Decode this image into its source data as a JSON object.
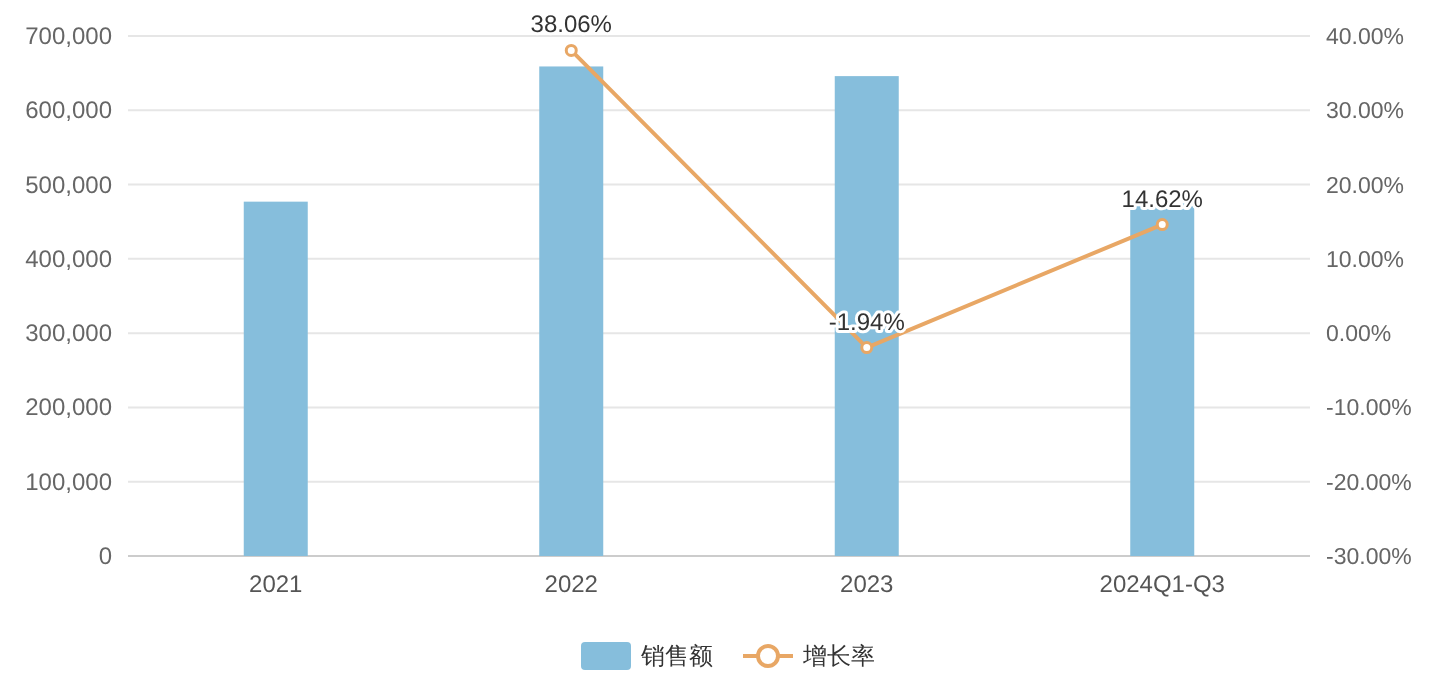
{
  "chart_data": {
    "type": "bar",
    "categories": [
      "2021",
      "2022",
      "2023",
      "2024Q1-Q3"
    ],
    "series": [
      {
        "name": "销售额",
        "color": "#86bedc",
        "values": [
          477000,
          659000,
          646000,
          475000
        ]
      },
      {
        "name": "增长率",
        "type": "line",
        "axis": "y2",
        "color": "#e8a765",
        "marker": "circle",
        "values": [
          null,
          38.06,
          -1.94,
          14.62
        ],
        "value_labels": [
          null,
          "38.06%",
          "-1.94%",
          "14.62%"
        ]
      }
    ],
    "ylim": [
      0,
      700000
    ],
    "yticks": [
      {
        "value": 0,
        "label": "0"
      },
      {
        "value": 100000,
        "label": "100,000"
      },
      {
        "value": 200000,
        "label": "200,000"
      },
      {
        "value": 300000,
        "label": "300,000"
      },
      {
        "value": 400000,
        "label": "400,000"
      },
      {
        "value": 500000,
        "label": "500,000"
      },
      {
        "value": 600000,
        "label": "600,000"
      },
      {
        "value": 700000,
        "label": "700,000"
      }
    ],
    "y2lim": [
      -30,
      40
    ],
    "y2ticks": [
      {
        "value": -30,
        "label": "-30.00%"
      },
      {
        "value": -20,
        "label": "-20.00%"
      },
      {
        "value": -10,
        "label": "-10.00%"
      },
      {
        "value": 0,
        "label": "0.00%"
      },
      {
        "value": 10,
        "label": "10.00%"
      },
      {
        "value": 20,
        "label": "20.00%"
      },
      {
        "value": 30,
        "label": "30.00%"
      },
      {
        "value": 40,
        "label": "40.00%"
      }
    ],
    "grid": "y",
    "legend": "bottom"
  }
}
